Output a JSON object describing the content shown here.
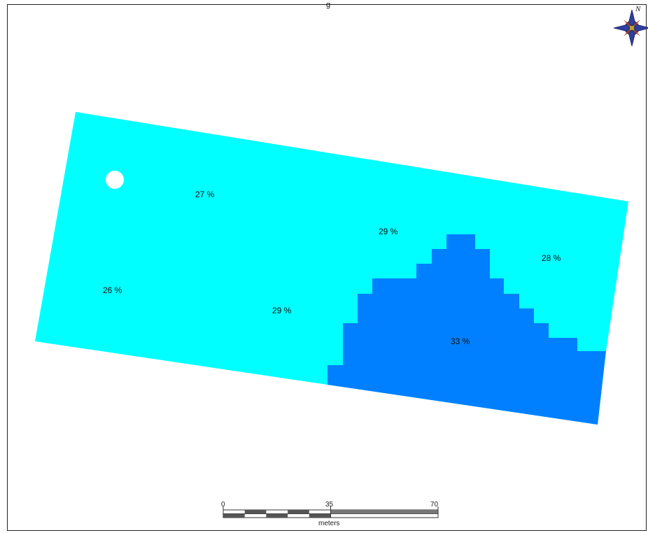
{
  "map": {
    "title_fragment": "g",
    "north_arrow_letter": "N",
    "zones": [
      {
        "label": "27 %",
        "color": "#00FFFF"
      },
      {
        "label": "26 %",
        "color": "#00FFFF"
      },
      {
        "label": "29 %",
        "color": "#00FFFF"
      },
      {
        "label": "29 %",
        "color": "#00FFFF"
      },
      {
        "label": "28 %",
        "color": "#00FFFF"
      },
      {
        "label": "33 %",
        "color": "#0080FF"
      }
    ],
    "scale_bar": {
      "ticks": [
        "0",
        "35",
        "70"
      ],
      "unit": "meters"
    }
  },
  "colors": {
    "light_zone": "#00FFFF",
    "dark_zone": "#0080FF",
    "frame": "#222222"
  },
  "icons": [
    "north-arrow-icon",
    "well-marker-icon"
  ]
}
